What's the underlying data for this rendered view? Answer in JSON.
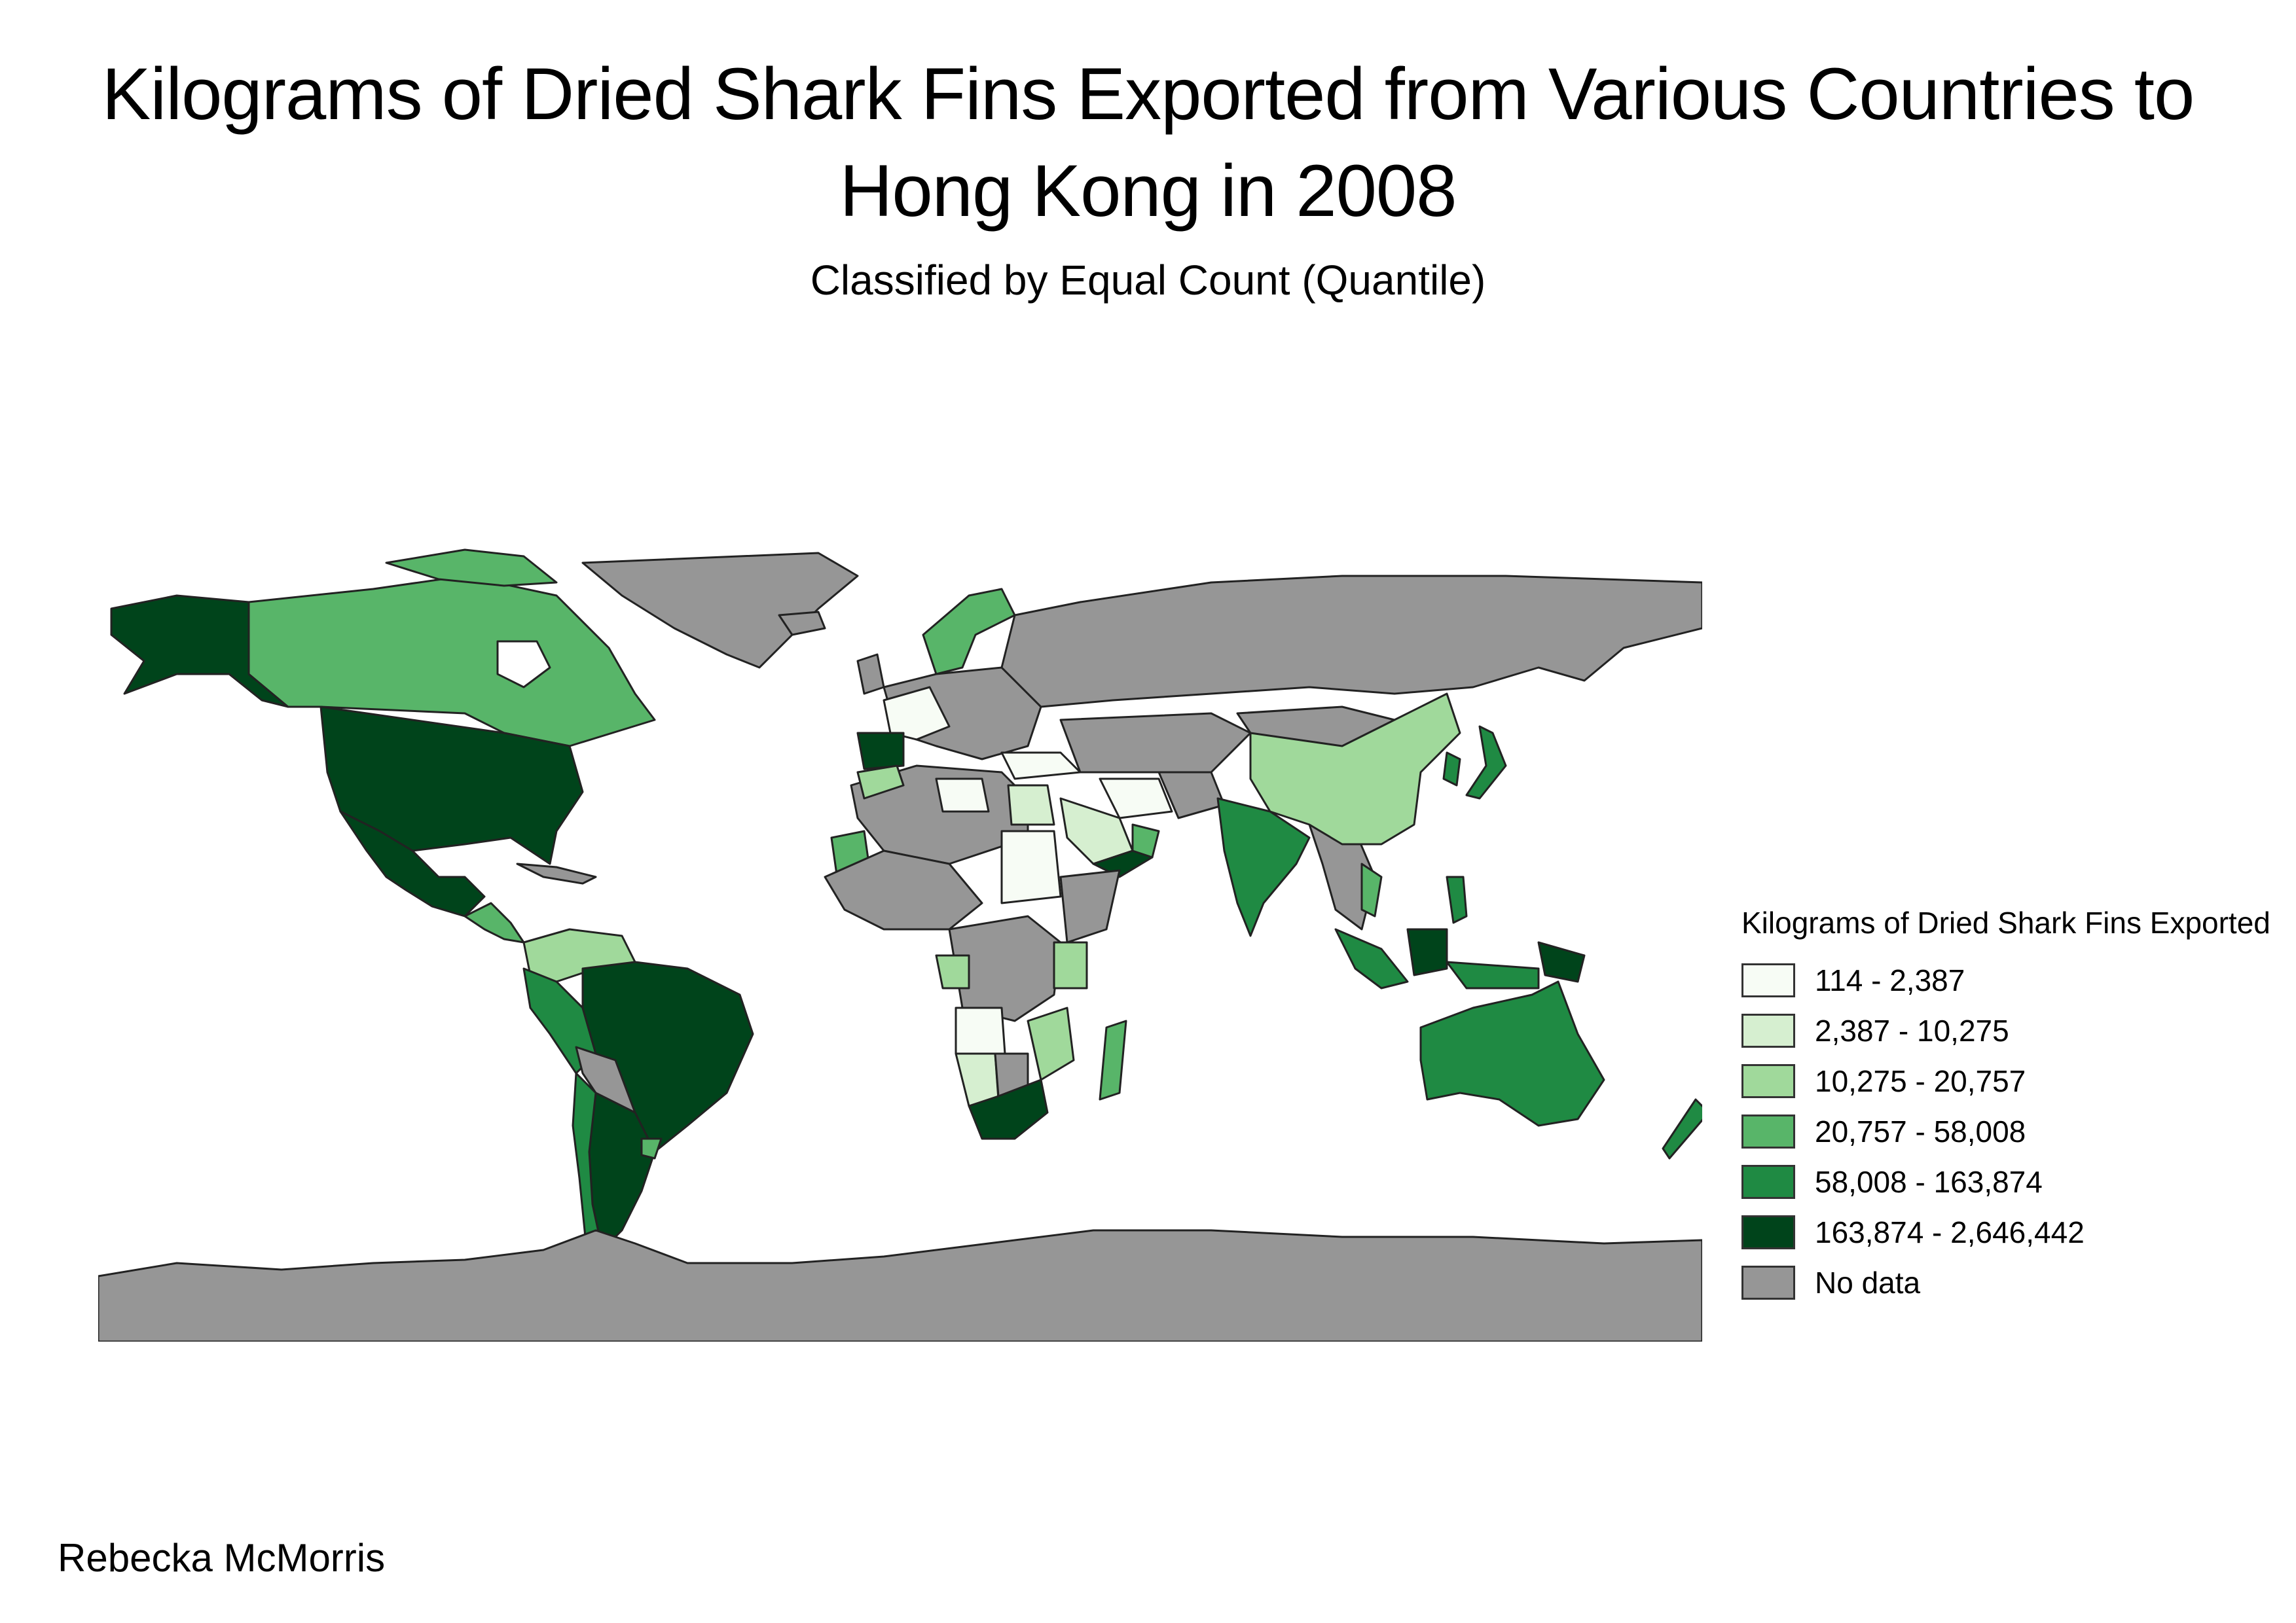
{
  "title": "Kilograms of Dried Shark Fins Exported from Various Countries to Hong Kong in 2008",
  "subtitle": "Classified by Equal Count (Quantile)",
  "author": "Rebecka McMorris",
  "legend": {
    "title": "Kilograms of Dried Shark Fins Exported",
    "items": [
      {
        "label": "114 - 2,387",
        "color": "#f7fcf5"
      },
      {
        "label": "2,387 - 10,275",
        "color": "#d6efd0"
      },
      {
        "label": "10,275 - 20,757",
        "color": "#a0d99b"
      },
      {
        "label": "20,757 - 58,008",
        "color": "#58b569"
      },
      {
        "label": "58,008 - 163,874",
        "color": "#1f8a43"
      },
      {
        "label": "163,874 - 2,646,442",
        "color": "#00441b"
      },
      {
        "label": "No data",
        "color": "#969696"
      }
    ]
  },
  "colors": {
    "ocean": "#ffffff",
    "border": "#222222"
  }
}
